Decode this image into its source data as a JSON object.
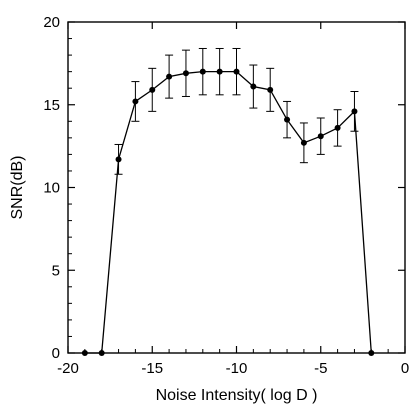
{
  "chart_data": {
    "type": "line",
    "title": "",
    "xlabel": "Noise Intensity( log D )",
    "ylabel": "SNR(dB)",
    "xlim": [
      -20,
      0
    ],
    "ylim": [
      0,
      20
    ],
    "xticks": [
      -20,
      -15,
      -10,
      -5,
      0
    ],
    "yticks": [
      0,
      5,
      10,
      15,
      20
    ],
    "grid": false,
    "legend": "none",
    "series": [
      {
        "x": [
          -19,
          -18,
          -17,
          -16,
          -15,
          -14,
          -13,
          -12,
          -11,
          -10,
          -9,
          -8,
          -7,
          -6,
          -5,
          -4,
          -3,
          -2
        ],
        "values": [
          0,
          0,
          11.7,
          15.2,
          15.9,
          16.7,
          16.9,
          17.0,
          17.0,
          17.0,
          16.1,
          15.9,
          14.1,
          12.7,
          13.1,
          13.6,
          14.6,
          0
        ],
        "errors": [
          null,
          null,
          0.9,
          1.2,
          1.3,
          1.3,
          1.4,
          1.4,
          1.4,
          1.4,
          1.3,
          1.3,
          1.1,
          1.2,
          1.1,
          1.1,
          1.2,
          null
        ],
        "color": "#000000"
      }
    ]
  }
}
